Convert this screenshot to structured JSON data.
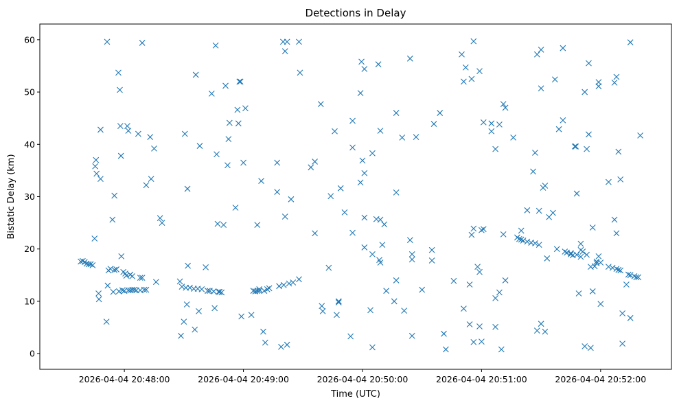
{
  "chart_data": {
    "type": "scatter",
    "title": "Detections in Delay",
    "xlabel": "Time (UTC)",
    "ylabel": "Bistatic Delay (km)",
    "marker": "x",
    "color": "#1f77b4",
    "x_unit": "seconds since 2026-04-04 20:48:00",
    "xlim": [
      -42.6,
      275.7
    ],
    "ylim": [
      -3.0,
      63.0
    ],
    "x_ticks": [
      {
        "value": 0,
        "label": "2026-04-04 20:48:00"
      },
      {
        "value": 60,
        "label": "2026-04-04 20:49:00"
      },
      {
        "value": 120,
        "label": "2026-04-04 20:50:00"
      },
      {
        "value": 180,
        "label": "2026-04-04 20:51:00"
      },
      {
        "value": 240,
        "label": "2026-04-04 20:52:00"
      }
    ],
    "y_ticks": [
      {
        "value": 0,
        "label": "0"
      },
      {
        "value": 10,
        "label": "10"
      },
      {
        "value": 20,
        "label": "20"
      },
      {
        "value": 30,
        "label": "30"
      },
      {
        "value": 40,
        "label": "40"
      },
      {
        "value": 50,
        "label": "50"
      },
      {
        "value": 60,
        "label": "60"
      }
    ],
    "series": [
      {
        "name": "detections",
        "points": [
          [
            -22,
            17.6
          ],
          [
            -21,
            17.7
          ],
          [
            -20,
            17.5
          ],
          [
            -19,
            17.2
          ],
          [
            -18,
            17.1
          ],
          [
            -17,
            17.1
          ],
          [
            -16,
            16.9
          ],
          [
            -15,
            22.0
          ],
          [
            -14.7,
            35.8
          ],
          [
            -14.3,
            37.0
          ],
          [
            -14,
            34.4
          ],
          [
            -13,
            11.5
          ],
          [
            -12.8,
            10.4
          ],
          [
            -12,
            42.8
          ],
          [
            -12,
            33.4
          ],
          [
            -9,
            6.1
          ],
          [
            -8.7,
            59.6
          ],
          [
            -8.4,
            13.0
          ],
          [
            -8,
            15.9
          ],
          [
            -7,
            16.2
          ],
          [
            -6,
            25.6
          ],
          [
            -5.6,
            11.8
          ],
          [
            -5,
            30.2
          ],
          [
            -5,
            16.0
          ],
          [
            -4,
            16.1
          ],
          [
            -3,
            53.7
          ],
          [
            -2.7,
            11.9
          ],
          [
            -2.3,
            50.4
          ],
          [
            -2,
            43.5
          ],
          [
            -1.7,
            37.8
          ],
          [
            -1.5,
            18.6
          ],
          [
            -1,
            12.1
          ],
          [
            -0.5,
            15.6
          ],
          [
            0,
            12.0
          ],
          [
            0.5,
            15.3
          ],
          [
            1,
            14.9
          ],
          [
            1.5,
            43.5
          ],
          [
            2,
            42.6
          ],
          [
            2,
            12.1
          ],
          [
            3,
            15.1
          ],
          [
            3,
            12.1
          ],
          [
            4,
            14.8
          ],
          [
            4,
            12.2
          ],
          [
            5,
            12.2
          ],
          [
            6,
            12.1
          ],
          [
            7,
            42.0
          ],
          [
            8,
            14.5
          ],
          [
            8,
            12.1
          ],
          [
            9,
            14.5
          ],
          [
            9,
            59.4
          ],
          [
            10,
            12.2
          ],
          [
            11,
            32.2
          ],
          [
            11,
            12.2
          ],
          [
            13,
            41.4
          ],
          [
            13.5,
            33.4
          ],
          [
            15,
            39.2
          ],
          [
            16,
            13.7
          ],
          [
            18,
            25.9
          ],
          [
            19,
            25.0
          ],
          [
            28,
            13.8
          ],
          [
            28.5,
            3.4
          ],
          [
            29,
            12.8
          ],
          [
            30,
            6.1
          ],
          [
            30.5,
            42.0
          ],
          [
            31,
            12.6
          ],
          [
            31.5,
            9.4
          ],
          [
            31.8,
            31.5
          ],
          [
            32,
            16.8
          ],
          [
            33,
            12.6
          ],
          [
            35,
            12.4
          ],
          [
            35.5,
            4.6
          ],
          [
            36,
            53.3
          ],
          [
            37,
            12.4
          ],
          [
            37.5,
            8.1
          ],
          [
            38,
            39.7
          ],
          [
            39,
            12.3
          ],
          [
            41,
            16.5
          ],
          [
            42,
            12.0
          ],
          [
            43,
            12.0
          ],
          [
            44,
            49.7
          ],
          [
            45,
            11.9
          ],
          [
            45.5,
            8.7
          ],
          [
            46,
            58.9
          ],
          [
            46.5,
            38.1
          ],
          [
            47,
            24.8
          ],
          [
            47.5,
            11.8
          ],
          [
            48,
            11.8
          ],
          [
            49,
            11.7
          ],
          [
            50,
            24.6
          ],
          [
            51,
            51.2
          ],
          [
            52,
            36.0
          ],
          [
            52.5,
            41.0
          ],
          [
            53,
            44.1
          ],
          [
            56,
            27.9
          ],
          [
            57,
            46.6
          ],
          [
            57.5,
            44.0
          ],
          [
            58,
            52.0
          ],
          [
            58.5,
            52.0
          ],
          [
            59,
            7.1
          ],
          [
            60,
            36.5
          ],
          [
            61,
            46.9
          ],
          [
            64,
            7.4
          ],
          [
            65,
            12.0
          ],
          [
            66,
            11.9
          ],
          [
            67,
            12.0
          ],
          [
            67,
            24.6
          ],
          [
            68,
            12.3
          ],
          [
            68,
            12.0
          ],
          [
            69,
            33.0
          ],
          [
            70,
            4.2
          ],
          [
            70.5,
            12.0
          ],
          [
            71,
            2.1
          ],
          [
            72,
            12.3
          ],
          [
            73,
            12.5
          ],
          [
            77,
            36.5
          ],
          [
            77,
            30.9
          ],
          [
            78,
            12.9
          ],
          [
            79,
            1.3
          ],
          [
            80,
            59.6
          ],
          [
            80.3,
            13.1
          ],
          [
            81,
            57.8
          ],
          [
            81,
            26.2
          ],
          [
            82,
            59.6
          ],
          [
            82,
            1.7
          ],
          [
            83,
            13.4
          ],
          [
            84,
            29.5
          ],
          [
            85,
            13.6
          ],
          [
            88,
            59.6
          ],
          [
            88,
            14.2
          ],
          [
            88.5,
            53.7
          ],
          [
            94,
            35.6
          ],
          [
            96,
            23.0
          ],
          [
            96,
            36.7
          ],
          [
            99,
            47.7
          ],
          [
            99.5,
            9.1
          ],
          [
            100,
            8.1
          ],
          [
            103,
            16.4
          ],
          [
            104,
            30.1
          ],
          [
            106,
            42.5
          ],
          [
            107,
            7.4
          ],
          [
            108,
            9.8
          ],
          [
            108,
            10.0
          ],
          [
            109,
            31.6
          ],
          [
            111,
            27.0
          ],
          [
            114,
            3.3
          ],
          [
            115,
            23.1
          ],
          [
            115,
            39.4
          ],
          [
            115,
            44.5
          ],
          [
            119,
            49.8
          ],
          [
            119,
            32.7
          ],
          [
            119.5,
            55.8
          ],
          [
            120,
            36.9
          ],
          [
            121,
            34.5
          ],
          [
            121,
            26.0
          ],
          [
            121,
            20.3
          ],
          [
            121,
            54.4
          ],
          [
            124,
            8.3
          ],
          [
            125,
            19.0
          ],
          [
            125,
            38.3
          ],
          [
            125,
            1.2
          ],
          [
            127,
            25.7
          ],
          [
            128,
            55.3
          ],
          [
            128.5,
            17.9
          ],
          [
            129,
            17.4
          ],
          [
            129,
            42.6
          ],
          [
            129,
            25.6
          ],
          [
            130,
            20.8
          ],
          [
            131,
            24.7
          ],
          [
            132,
            12.0
          ],
          [
            136,
            10.0
          ],
          [
            137,
            14.0
          ],
          [
            137,
            30.8
          ],
          [
            137,
            46.0
          ],
          [
            140,
            41.3
          ],
          [
            141,
            8.2
          ],
          [
            144,
            21.7
          ],
          [
            144,
            56.4
          ],
          [
            145,
            19.0
          ],
          [
            145,
            18.0
          ],
          [
            145,
            3.4
          ],
          [
            147,
            41.4
          ],
          [
            150,
            12.2
          ],
          [
            155,
            19.8
          ],
          [
            155,
            17.8
          ],
          [
            156,
            43.9
          ],
          [
            159,
            46.0
          ],
          [
            161,
            3.8
          ],
          [
            162,
            0.8
          ],
          [
            166,
            13.9
          ],
          [
            170,
            57.2
          ],
          [
            171,
            52.0
          ],
          [
            171,
            8.6
          ],
          [
            172,
            54.7
          ],
          [
            174,
            5.6
          ],
          [
            174,
            13.2
          ],
          [
            175,
            52.5
          ],
          [
            175,
            22.7
          ],
          [
            176,
            59.7
          ],
          [
            176,
            23.9
          ],
          [
            176,
            2.2
          ],
          [
            178,
            16.6
          ],
          [
            179,
            54.0
          ],
          [
            179,
            15.6
          ],
          [
            179,
            5.2
          ],
          [
            180,
            23.6
          ],
          [
            180,
            2.3
          ],
          [
            181,
            23.8
          ],
          [
            181,
            44.2
          ],
          [
            185,
            44.0
          ],
          [
            185,
            42.5
          ],
          [
            187,
            5.1
          ],
          [
            187,
            39.1
          ],
          [
            187,
            10.6
          ],
          [
            189,
            43.8
          ],
          [
            189,
            11.7
          ],
          [
            190,
            0.8
          ],
          [
            191,
            47.7
          ],
          [
            191,
            22.8
          ],
          [
            192,
            47.0
          ],
          [
            192,
            14.0
          ],
          [
            196,
            41.3
          ],
          [
            198,
            22.2
          ],
          [
            199,
            21.9
          ],
          [
            200,
            21.8
          ],
          [
            200,
            23.5
          ],
          [
            201,
            21.6
          ],
          [
            203,
            21.4
          ],
          [
            203,
            27.4
          ],
          [
            205,
            21.2
          ],
          [
            206,
            34.8
          ],
          [
            207,
            21.1
          ],
          [
            207,
            38.4
          ],
          [
            208,
            57.2
          ],
          [
            208,
            4.4
          ],
          [
            209,
            27.3
          ],
          [
            209,
            20.8
          ],
          [
            210,
            58.1
          ],
          [
            210,
            50.7
          ],
          [
            210,
            5.7
          ],
          [
            211,
            31.7
          ],
          [
            212,
            32.1
          ],
          [
            212,
            4.2
          ],
          [
            213,
            18.2
          ],
          [
            214,
            26.1
          ],
          [
            216,
            26.9
          ],
          [
            217,
            52.4
          ],
          [
            218,
            20.0
          ],
          [
            219,
            42.9
          ],
          [
            221,
            58.4
          ],
          [
            221,
            44.6
          ],
          [
            222,
            19.5
          ],
          [
            223,
            19.3
          ],
          [
            225,
            19.2
          ],
          [
            225,
            19.0
          ],
          [
            226,
            18.8
          ],
          [
            227,
            39.6
          ],
          [
            227.5,
            39.6
          ],
          [
            228,
            18.9
          ],
          [
            228,
            30.6
          ],
          [
            229,
            11.5
          ],
          [
            230,
            18.5
          ],
          [
            230,
            21.0
          ],
          [
            230,
            19.8
          ],
          [
            231,
            19.5
          ],
          [
            232,
            50.0
          ],
          [
            232,
            1.4
          ],
          [
            233,
            39.1
          ],
          [
            233,
            18.9
          ],
          [
            234,
            55.5
          ],
          [
            234,
            41.9
          ],
          [
            235,
            16.6
          ],
          [
            235,
            1.1
          ],
          [
            236,
            24.1
          ],
          [
            236,
            11.9
          ],
          [
            237,
            16.7
          ],
          [
            238,
            17.6
          ],
          [
            238,
            17.3
          ],
          [
            239,
            18.6
          ],
          [
            239,
            51.1
          ],
          [
            239,
            51.9
          ],
          [
            240,
            17.4
          ],
          [
            240,
            9.5
          ],
          [
            244,
            32.8
          ],
          [
            244,
            16.6
          ],
          [
            246,
            16.4
          ],
          [
            247,
            51.8
          ],
          [
            247,
            25.6
          ],
          [
            248,
            16.2
          ],
          [
            248,
            52.9
          ],
          [
            248,
            23.0
          ],
          [
            249,
            38.6
          ],
          [
            249,
            16.0
          ],
          [
            250,
            15.9
          ],
          [
            250,
            33.3
          ],
          [
            251,
            7.7
          ],
          [
            251,
            1.9
          ],
          [
            253,
            13.2
          ],
          [
            254,
            15.1
          ],
          [
            255,
            59.5
          ],
          [
            255,
            15.0
          ],
          [
            255,
            6.8
          ],
          [
            257,
            14.8
          ],
          [
            258,
            14.6
          ],
          [
            259,
            14.6
          ],
          [
            260,
            41.7
          ]
        ]
      }
    ]
  }
}
